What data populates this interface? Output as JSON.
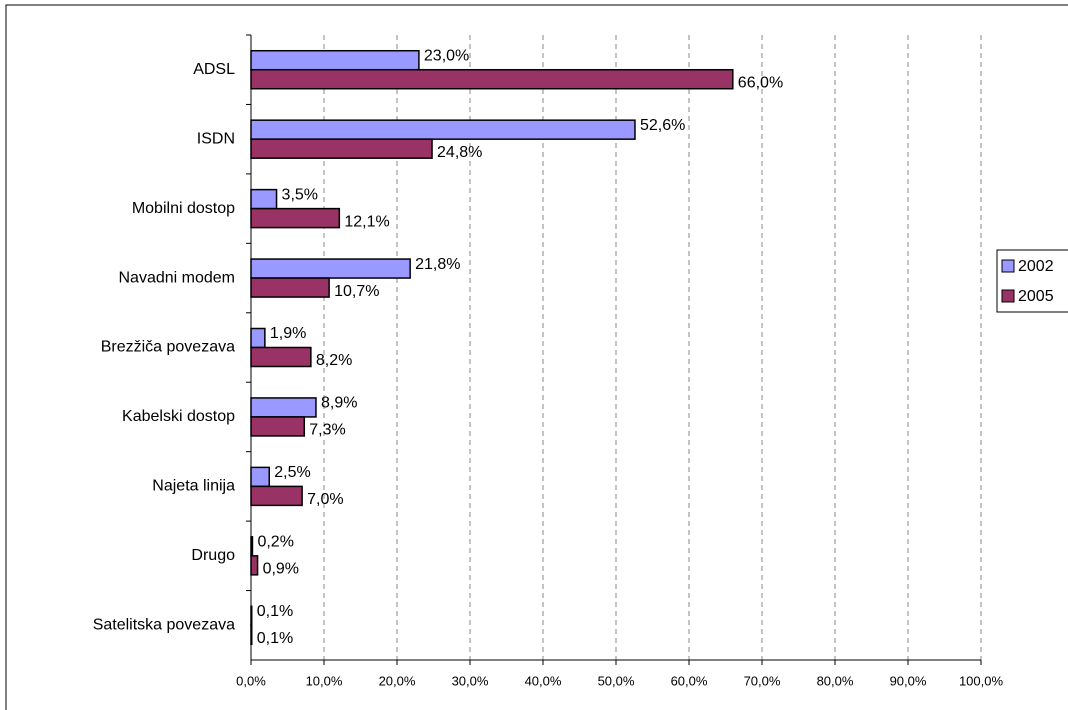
{
  "chart_data": {
    "type": "bar",
    "orientation": "horizontal",
    "categories": [
      "ADSL",
      "ISDN",
      "Mobilni dostop",
      "Navadni modem",
      "Brezžiča povezava",
      "Kabelski dostop",
      "Najeta linija",
      "Drugo",
      "Satelitska povezava"
    ],
    "series": [
      {
        "name": "2002",
        "color": "#9999ff",
        "values": [
          23.0,
          52.6,
          3.5,
          21.8,
          1.9,
          8.9,
          2.5,
          0.2,
          0.1
        ],
        "value_labels": [
          "23,0%",
          "52,6%",
          "3,5%",
          "21,8%",
          "1,9%",
          "8,9%",
          "2,5%",
          "0,2%",
          "0,1%"
        ]
      },
      {
        "name": "2005",
        "color": "#993366",
        "values": [
          66.0,
          24.8,
          12.1,
          10.7,
          8.2,
          7.3,
          7.0,
          0.9,
          0.1
        ],
        "value_labels": [
          "66,0%",
          "24,8%",
          "12,1%",
          "10,7%",
          "8,2%",
          "7,3%",
          "7,0%",
          "0,9%",
          "0,1%"
        ]
      }
    ],
    "xlim": [
      0,
      100
    ],
    "xticks": [
      {
        "value": 0,
        "label": "0,0%"
      },
      {
        "value": 10,
        "label": "10,0%"
      },
      {
        "value": 20,
        "label": "20,0%"
      },
      {
        "value": 30,
        "label": "30,0%"
      },
      {
        "value": 40,
        "label": "40,0%"
      },
      {
        "value": 50,
        "label": "50,0%"
      },
      {
        "value": 60,
        "label": "60,0%"
      },
      {
        "value": 70,
        "label": "70,0%"
      },
      {
        "value": 80,
        "label": "80,0%"
      },
      {
        "value": 90,
        "label": "90,0%"
      },
      {
        "value": 100,
        "label": "100,0%"
      }
    ],
    "grid": true,
    "legend": "right"
  }
}
